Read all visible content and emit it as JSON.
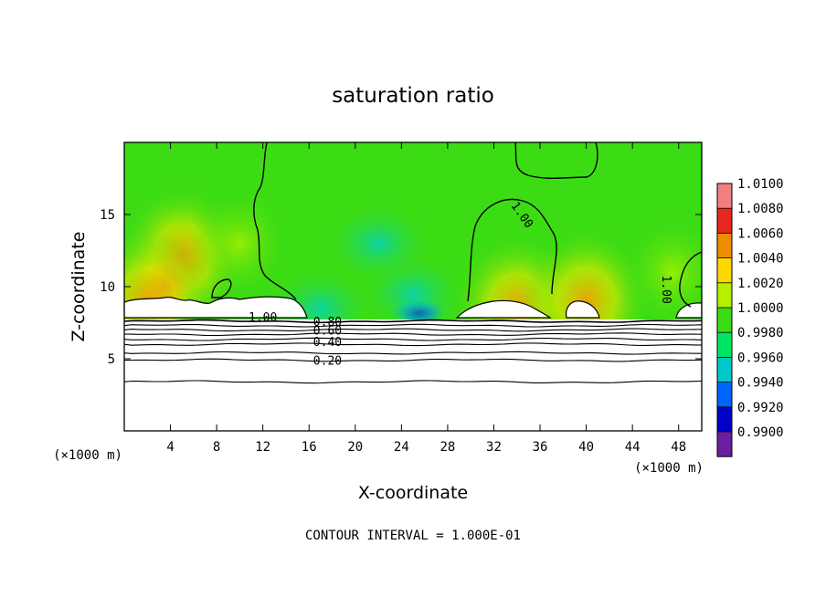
{
  "chart_data": {
    "type": "heatmap",
    "title": "saturation ratio",
    "xlabel": "X-coordinate",
    "ylabel": "Z-coordinate",
    "x_unit_label": "(×1000 m)",
    "y_unit_label": "(×1000 m)",
    "xlim": [
      0,
      50
    ],
    "ylim": [
      0,
      20
    ],
    "x_ticks": [
      4,
      8,
      12,
      16,
      20,
      24,
      28,
      32,
      36,
      40,
      44,
      48
    ],
    "y_ticks": [
      5,
      10,
      15
    ],
    "footnote": "CONTOUR INTERVAL = 1.000E-01",
    "colorbar": {
      "labels": [
        "1.0100",
        "1.0080",
        "1.0060",
        "1.0040",
        "1.0020",
        "1.0000",
        "0.9980",
        "0.9960",
        "0.9940",
        "0.9920",
        "0.9900"
      ],
      "colors": [
        "#f08080",
        "#e8281e",
        "#f08c00",
        "#ffd700",
        "#b4f000",
        "#3cdc14",
        "#00e664",
        "#00c8c8",
        "#0064ff",
        "#0000c8",
        "#6a1fa0"
      ]
    },
    "contour_labels": [
      {
        "text": "1.00",
        "x": 34.5,
        "z": 15.0,
        "rotate": 55
      },
      {
        "text": "1.00",
        "x": 47.0,
        "z": 9.8,
        "rotate": 90
      },
      {
        "text": "1.00",
        "x": 12.0,
        "z": 7.9,
        "rotate": 0
      },
      {
        "text": "0.80",
        "x": 17.6,
        "z": 7.6,
        "rotate": 0
      },
      {
        "text": "0.60",
        "x": 17.6,
        "z": 7.0,
        "rotate": 0
      },
      {
        "text": "0.40",
        "x": 17.6,
        "z": 6.2,
        "rotate": 0
      },
      {
        "text": "0.20",
        "x": 17.6,
        "z": 4.9,
        "rotate": 0
      }
    ],
    "sub_saturated_isolines_z": [
      7.6,
      7.3,
      7.0,
      6.7,
      6.35,
      6.0,
      5.4,
      4.9,
      3.4
    ],
    "field_blobs": [
      {
        "x": 5.0,
        "z": 12.0,
        "value": 1.0045
      },
      {
        "x": 3.5,
        "z": 10.0,
        "value": 1.0065
      },
      {
        "x": 2.0,
        "z": 9.0,
        "value": 1.0035
      },
      {
        "x": 10.0,
        "z": 13.0,
        "value": 1.0022
      },
      {
        "x": 25.5,
        "z": 8.2,
        "value": 0.9935
      },
      {
        "x": 25.0,
        "z": 9.5,
        "value": 0.997
      },
      {
        "x": 17.0,
        "z": 8.5,
        "value": 0.9975
      },
      {
        "x": 34.0,
        "z": 8.6,
        "value": 1.005
      },
      {
        "x": 40.0,
        "z": 9.0,
        "value": 1.0035
      },
      {
        "x": 47.5,
        "z": 11.0,
        "value": 1.0025
      },
      {
        "x": 22.0,
        "z": 13.0,
        "value": 0.9985
      }
    ]
  }
}
